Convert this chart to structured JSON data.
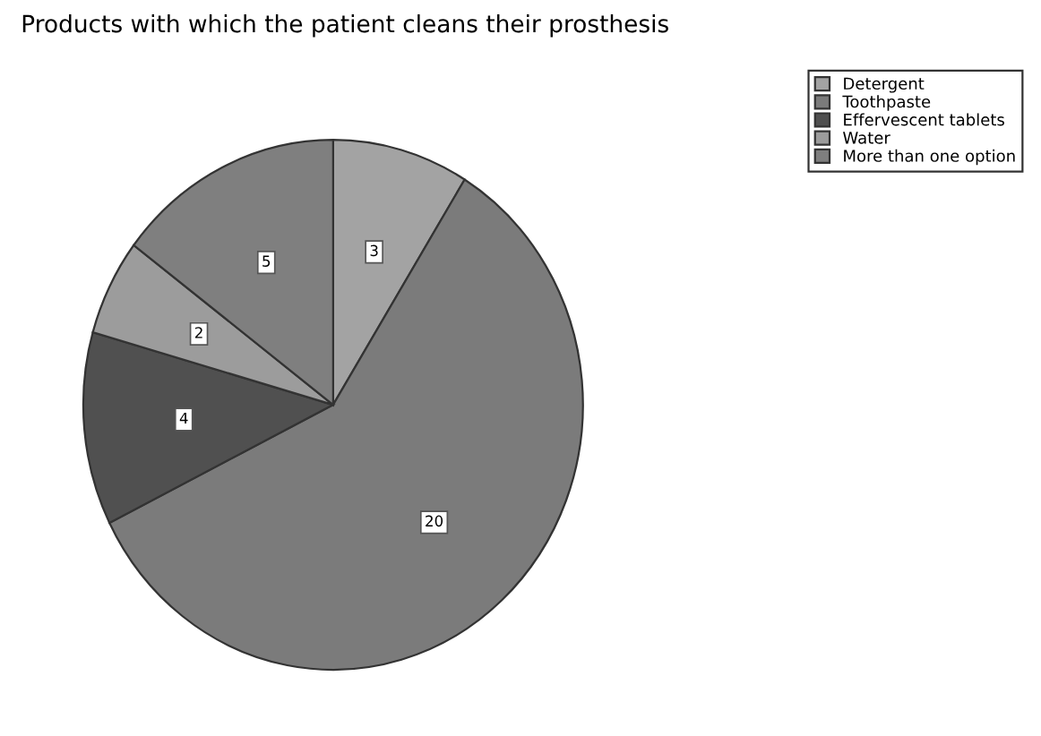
{
  "chart_data": {
    "type": "pie",
    "title": "Products with which the patient cleans their prosthesis",
    "categories": [
      "Detergent",
      "Toothpaste",
      "Effervescent tablets",
      "Water",
      "More than one option"
    ],
    "values": [
      3,
      20,
      4,
      2,
      5
    ],
    "colors": [
      "#a3a3a3",
      "#7b7b7b",
      "#505050",
      "#9c9c9c",
      "#7f7f7f"
    ],
    "data_labels": true,
    "legend": "top right"
  }
}
